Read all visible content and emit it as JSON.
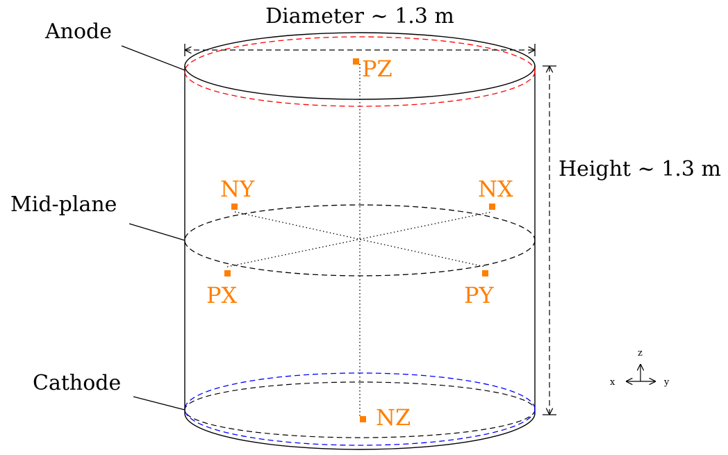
{
  "labels": {
    "diameter": "Diameter ∼ 1.3 m",
    "height": "Height ∼ 1.3 m",
    "anode": "Anode",
    "mid_plane": "Mid-plane",
    "cathode": "Cathode"
  },
  "axes": {
    "z": "z",
    "x": "x",
    "y": "y"
  },
  "sensors": [
    {
      "label": "PZ"
    },
    {
      "label": "NY"
    },
    {
      "label": "NX"
    },
    {
      "label": "PX"
    },
    {
      "label": "PY"
    },
    {
      "label": "NZ"
    }
  ],
  "colors": {
    "sensor": "#ff7f00",
    "anode": "#ff0000",
    "cathode": "#0000ff",
    "outline": "#000000"
  }
}
